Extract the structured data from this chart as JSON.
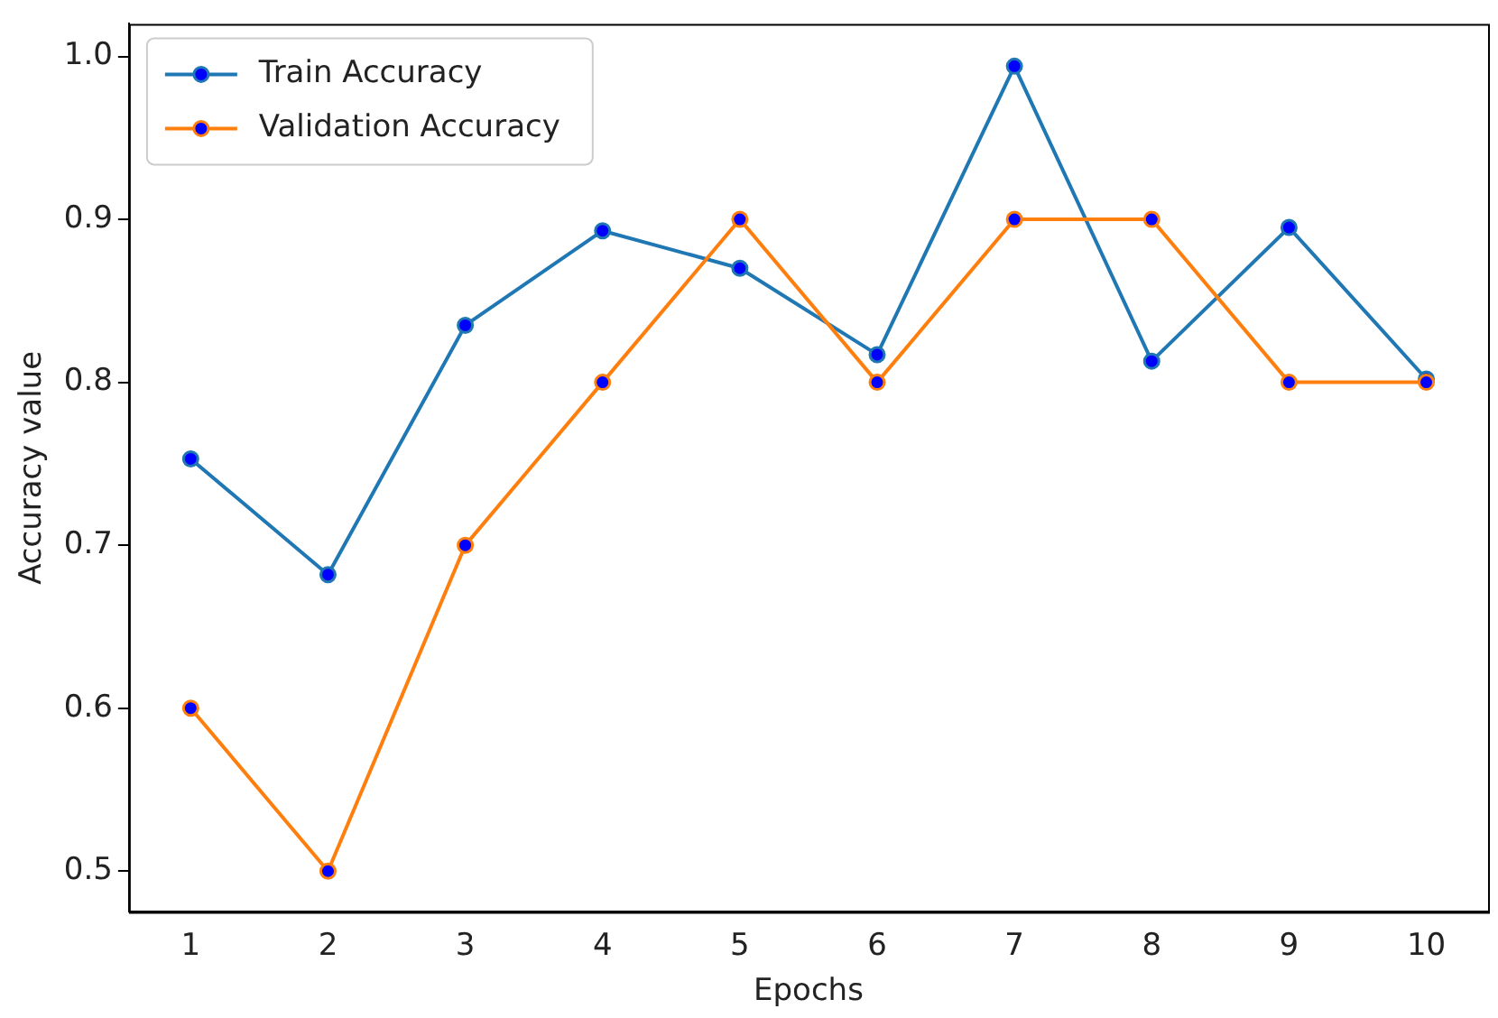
{
  "chart_data": {
    "type": "line",
    "xlabel": "Epochs",
    "ylabel": "Accuracy value",
    "x": [
      1,
      2,
      3,
      4,
      5,
      6,
      7,
      8,
      9,
      10
    ],
    "series": [
      {
        "name": "Train Accuracy",
        "color": "#1f77b4",
        "values": [
          0.753,
          0.682,
          0.835,
          0.893,
          0.87,
          0.817,
          0.994,
          0.813,
          0.895,
          0.802
        ]
      },
      {
        "name": "Validation Accuracy",
        "color": "#ff7f0e",
        "values": [
          0.6,
          0.5,
          0.7,
          0.8,
          0.9,
          0.8,
          0.9,
          0.9,
          0.8,
          0.8
        ]
      }
    ],
    "xlim": [
      0.55,
      10.45
    ],
    "xticks": [
      1,
      2,
      3,
      4,
      5,
      6,
      7,
      8,
      9,
      10
    ],
    "ylim": [
      0.475,
      1.02
    ],
    "yticks": [
      {
        "value": 0.5,
        "label": "0.5"
      },
      {
        "value": 0.6,
        "label": "0.6"
      },
      {
        "value": 0.7,
        "label": "0.7"
      },
      {
        "value": 0.8,
        "label": "0.8"
      },
      {
        "value": 0.9,
        "label": "0.9"
      },
      {
        "value": 1.0,
        "label": "1.0"
      }
    ],
    "grid": false,
    "legend": "top left",
    "marker": "circle",
    "line_style": "solid"
  }
}
